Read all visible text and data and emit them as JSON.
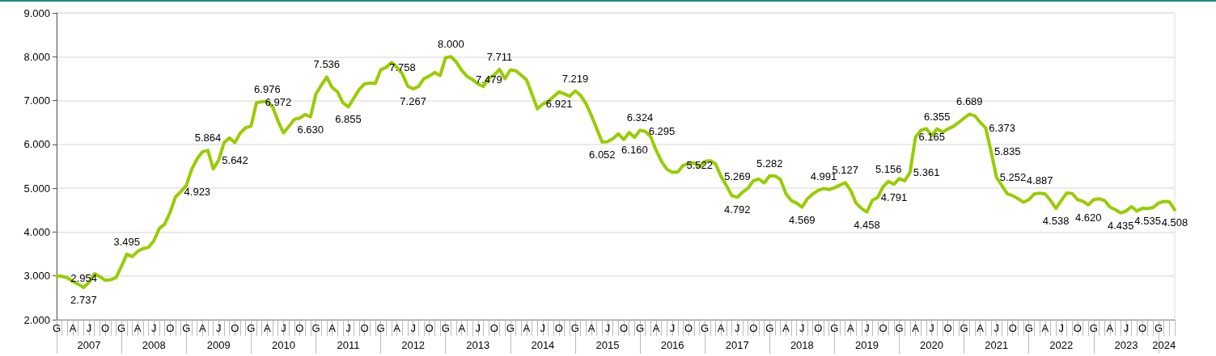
{
  "chart_data": {
    "type": "line",
    "categories": [
      "G",
      null,
      null,
      "A",
      null,
      null,
      "J",
      null,
      null,
      "O",
      null,
      null,
      "G",
      null,
      null,
      "A",
      null,
      null,
      "J",
      null,
      null,
      "O",
      null,
      null,
      "G",
      null,
      null,
      "A",
      null,
      null,
      "J",
      null,
      null,
      "O",
      null,
      null,
      "G",
      null,
      null,
      "A",
      null,
      null,
      "J",
      null,
      null,
      "O",
      null,
      null,
      "G",
      null,
      null,
      "A",
      null,
      null,
      "J",
      null,
      null,
      "O",
      null,
      null,
      "G",
      null,
      null,
      "A",
      null,
      null,
      "J",
      null,
      null,
      "O",
      null,
      null,
      "G",
      null,
      null,
      "A",
      null,
      null,
      "J",
      null,
      null,
      "O",
      null,
      null,
      "G",
      null,
      null,
      "A",
      null,
      null,
      "J",
      null,
      null,
      "O",
      null,
      null,
      "G",
      null,
      null,
      "A",
      null,
      null,
      "J",
      null,
      null,
      "O",
      null,
      null,
      "G",
      null,
      null,
      "A",
      null,
      null,
      "J",
      null,
      null,
      "O",
      null,
      null,
      "G",
      null,
      null,
      "A",
      null,
      null,
      "J",
      null,
      null,
      "O",
      null,
      null,
      "G",
      null,
      null,
      "A",
      null,
      null,
      "J",
      null,
      null,
      "O",
      null,
      null,
      "G",
      null,
      null,
      "A",
      null,
      null,
      "J",
      null,
      null,
      "O",
      null,
      null,
      "G",
      null,
      null,
      "A",
      null,
      null,
      "J",
      null,
      null,
      "O",
      null,
      null,
      "G",
      null,
      null,
      "A",
      null,
      null,
      "J",
      null,
      null,
      "O",
      null,
      null,
      "G",
      null,
      null,
      "A",
      null,
      null,
      "J",
      null,
      null,
      "O",
      null,
      null,
      "G",
      null,
      null,
      "A",
      null,
      null,
      "J",
      null,
      null,
      "O",
      null,
      null,
      "G",
      null,
      null,
      null
    ],
    "series": [
      {
        "color": "#99cc00",
        "values": [
          3000,
          2990,
          2954,
          2870,
          2810,
          2737,
          2850,
          3050,
          2980,
          2900,
          2910,
          2960,
          3220,
          3495,
          3440,
          3560,
          3620,
          3650,
          3800,
          4080,
          4180,
          4450,
          4800,
          4923,
          5060,
          5430,
          5670,
          5830,
          5864,
          5440,
          5642,
          6040,
          6150,
          6040,
          6260,
          6380,
          6420,
          6950,
          6972,
          6976,
          6850,
          6530,
          6260,
          6410,
          6570,
          6600,
          6680,
          6630,
          7150,
          7350,
          7536,
          7300,
          7200,
          6950,
          6855,
          7050,
          7250,
          7380,
          7400,
          7390,
          7700,
          7758,
          7870,
          7760,
          7610,
          7330,
          7267,
          7320,
          7500,
          7560,
          7640,
          7570,
          7980,
          8000,
          7880,
          7690,
          7550,
          7479,
          7380,
          7320,
          7510,
          7580,
          7711,
          7500,
          7700,
          7680,
          7580,
          7470,
          7150,
          6810,
          6921,
          6980,
          7090,
          7200,
          7150,
          7100,
          7219,
          7120,
          6930,
          6660,
          6350,
          6052,
          6060,
          6130,
          6240,
          6110,
          6270,
          6160,
          6324,
          6295,
          6170,
          5860,
          5610,
          5430,
          5360,
          5370,
          5522,
          5560,
          5580,
          5490,
          5610,
          5630,
          5550,
          5269,
          5060,
          4830,
          4792,
          4910,
          5000,
          5170,
          5210,
          5120,
          5282,
          5280,
          5200,
          4880,
          4720,
          4660,
          4569,
          4760,
          4870,
          4950,
          4991,
          4970,
          5010,
          5070,
          5127,
          4950,
          4660,
          4540,
          4458,
          4720,
          4791,
          5030,
          5156,
          5090,
          5220,
          5170,
          5361,
          6165,
          6320,
          6360,
          6200,
          6355,
          6280,
          6350,
          6410,
          6500,
          6600,
          6689,
          6650,
          6500,
          6373,
          5835,
          5252,
          5060,
          4870,
          4830,
          4760,
          4680,
          4740,
          4870,
          4887,
          4870,
          4720,
          4538,
          4720,
          4890,
          4880,
          4740,
          4700,
          4620,
          4740,
          4760,
          4720,
          4570,
          4510,
          4435,
          4480,
          4580,
          4480,
          4540,
          4535,
          4560,
          4660,
          4700,
          4690,
          4508
        ],
        "value_labels": [
          null,
          null,
          "2.954",
          null,
          null,
          "2.737",
          null,
          null,
          null,
          null,
          null,
          null,
          null,
          "3.495",
          null,
          null,
          null,
          null,
          null,
          null,
          null,
          null,
          null,
          "4.923",
          null,
          null,
          null,
          null,
          "5.864",
          null,
          "5.642",
          null,
          null,
          null,
          null,
          null,
          null,
          null,
          "6.972",
          "6.976",
          null,
          null,
          null,
          null,
          null,
          null,
          null,
          "6.630",
          null,
          null,
          "7.536",
          null,
          null,
          null,
          "6.855",
          null,
          null,
          null,
          null,
          null,
          null,
          "7.758",
          null,
          null,
          null,
          null,
          "7.267",
          null,
          null,
          null,
          null,
          null,
          null,
          "8.000",
          null,
          null,
          null,
          "7.479",
          null,
          null,
          null,
          null,
          "7.711",
          null,
          null,
          null,
          null,
          null,
          null,
          null,
          "6.921",
          null,
          null,
          null,
          null,
          null,
          "7.219",
          null,
          null,
          null,
          null,
          "6.052",
          null,
          null,
          null,
          null,
          null,
          "6.160",
          "6.324",
          "6.295",
          null,
          null,
          null,
          null,
          null,
          null,
          "5.522",
          null,
          null,
          null,
          null,
          null,
          null,
          "5.269",
          null,
          null,
          "4.792",
          null,
          null,
          null,
          null,
          null,
          "5.282",
          null,
          null,
          null,
          null,
          null,
          "4.569",
          null,
          null,
          null,
          "4.991",
          null,
          null,
          null,
          "5.127",
          null,
          null,
          null,
          "4.458",
          null,
          "4.791",
          null,
          "5.156",
          null,
          null,
          null,
          "5.361",
          "6.165",
          null,
          null,
          null,
          "6.355",
          null,
          null,
          null,
          null,
          null,
          "6.689",
          null,
          null,
          "6.373",
          "5.835",
          "5.252",
          null,
          null,
          null,
          null,
          null,
          null,
          null,
          "4.887",
          null,
          null,
          "4.538",
          null,
          null,
          null,
          null,
          null,
          "4.620",
          null,
          null,
          null,
          null,
          null,
          "4.435",
          null,
          null,
          null,
          null,
          "4.535",
          null,
          null,
          null,
          null,
          "4.508"
        ]
      }
    ],
    "annotations": [
      "2007",
      "2008",
      "2009",
      "2010",
      "2011",
      "2012",
      "2013",
      "2014",
      "2015",
      "2016",
      "2017",
      "2018",
      "2019",
      "2020",
      "2021",
      "2022",
      "2023",
      "2024"
    ],
    "ylim": [
      2000,
      9000
    ],
    "yticks": [
      {
        "value": 2000,
        "label": "2.000"
      },
      {
        "value": 3000,
        "label": "3.000"
      },
      {
        "value": 4000,
        "label": "4.000"
      },
      {
        "value": 5000,
        "label": "5.000"
      },
      {
        "value": 6000,
        "label": "6.000"
      },
      {
        "value": 7000,
        "label": "7.000"
      },
      {
        "value": 8000,
        "label": "8.000"
      },
      {
        "value": 9000,
        "label": "9.000"
      }
    ],
    "grid": "y"
  }
}
